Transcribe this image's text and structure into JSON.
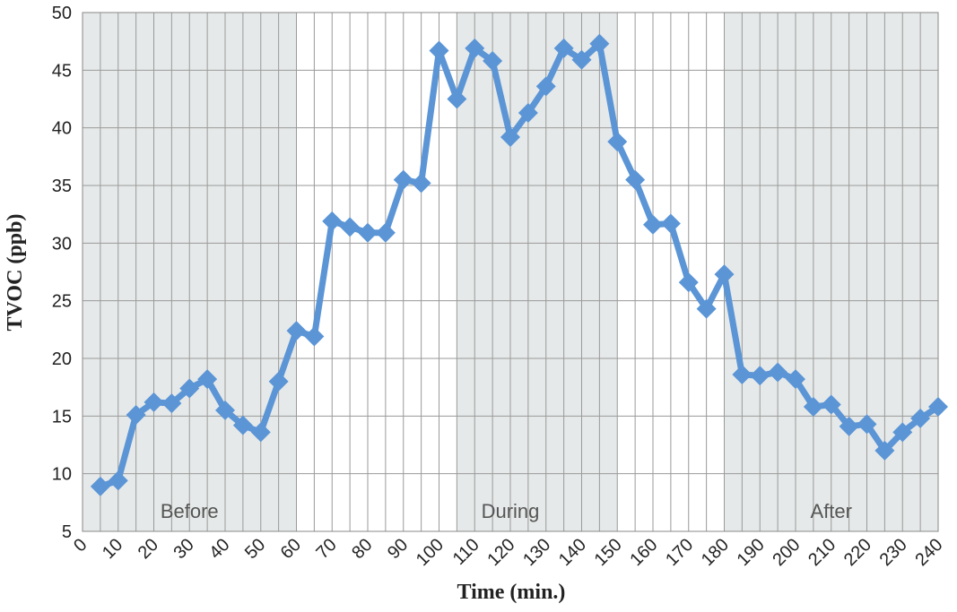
{
  "chart_data": {
    "type": "line",
    "x_label": "Time (min.)",
    "y_label": "TVOC (ppb)",
    "annotations": [
      "Before",
      "During",
      "After"
    ],
    "x": [
      5,
      10,
      15,
      20,
      25,
      30,
      35,
      40,
      45,
      50,
      55,
      60,
      65,
      70,
      75,
      80,
      85,
      90,
      95,
      100,
      105,
      110,
      115,
      120,
      125,
      130,
      135,
      140,
      145,
      150,
      155,
      160,
      165,
      170,
      175,
      180,
      185,
      190,
      195,
      200,
      205,
      210,
      215,
      220,
      225,
      230,
      235,
      240
    ],
    "series": [
      {
        "color": "#5b95d6",
        "values": [
          8.9,
          9.4,
          15.1,
          16.2,
          16.1,
          17.4,
          18.2,
          15.5,
          14.2,
          13.6,
          18.0,
          22.4,
          21.9,
          31.9,
          31.4,
          30.9,
          30.9,
          35.5,
          35.2,
          46.7,
          42.5,
          46.9,
          45.8,
          39.2,
          41.3,
          43.6,
          46.9,
          45.9,
          47.3,
          38.8,
          35.5,
          31.6,
          31.7,
          26.6,
          24.3,
          27.3,
          18.6,
          18.5,
          18.8,
          18.2,
          15.8,
          16.0,
          14.1,
          14.3,
          12.0,
          13.6,
          14.8,
          15.8
        ]
      }
    ],
    "xlim": [
      0,
      240
    ],
    "ylim": [
      5,
      50
    ],
    "xticks": [
      0,
      10,
      20,
      30,
      40,
      50,
      60,
      70,
      80,
      90,
      100,
      110,
      120,
      130,
      140,
      150,
      160,
      170,
      180,
      190,
      200,
      210,
      220,
      230,
      240
    ],
    "yticks": [
      5,
      10,
      15,
      20,
      25,
      30,
      35,
      40,
      45,
      50
    ],
    "grid": true
  }
}
